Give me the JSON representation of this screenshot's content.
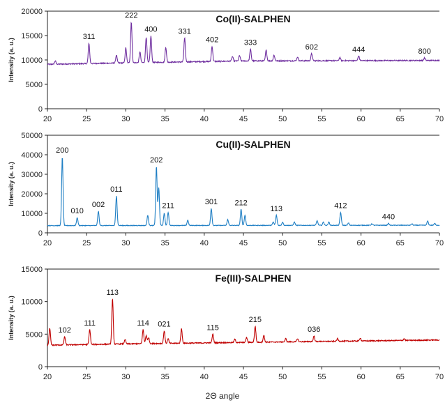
{
  "xlabel": "2Θ angle",
  "chart_data": [
    {
      "type": "line",
      "title": "Co(II)-SALPHEN",
      "ylabel": "Intensity (a. u.)",
      "color": "#7030a0",
      "xlim": [
        20,
        70
      ],
      "ylim": [
        0,
        20000
      ],
      "yticks": [
        0,
        5000,
        10000,
        15000,
        20000
      ],
      "xticks": [
        20,
        25,
        30,
        35,
        40,
        45,
        50,
        55,
        60,
        65,
        70
      ],
      "baseline": [
        [
          20,
          9100
        ],
        [
          30,
          9400
        ],
        [
          45,
          9800
        ],
        [
          70,
          9900
        ]
      ],
      "noise": 220,
      "peaks": [
        [
          21.0,
          9800
        ],
        [
          25.3,
          13400
        ],
        [
          28.8,
          11000
        ],
        [
          30.0,
          12500
        ],
        [
          30.7,
          17800
        ],
        [
          31.8,
          11700
        ],
        [
          32.6,
          14700
        ],
        [
          33.2,
          14900
        ],
        [
          35.1,
          12600
        ],
        [
          37.5,
          14500
        ],
        [
          41.0,
          12800
        ],
        [
          43.6,
          10700
        ],
        [
          44.5,
          10900
        ],
        [
          45.9,
          12200
        ],
        [
          47.9,
          12000
        ],
        [
          48.9,
          11000
        ],
        [
          51.9,
          10600
        ],
        [
          53.7,
          11300
        ],
        [
          57.3,
          10500
        ],
        [
          59.7,
          10800
        ],
        [
          68.1,
          10400
        ]
      ],
      "peak_labels": [
        {
          "x": 25.3,
          "y": 13400,
          "text": "311"
        },
        {
          "x": 30.7,
          "y": 17800,
          "text": "222"
        },
        {
          "x": 33.2,
          "y": 14900,
          "text": "400"
        },
        {
          "x": 37.5,
          "y": 14500,
          "text": "331"
        },
        {
          "x": 41.0,
          "y": 12800,
          "text": "402"
        },
        {
          "x": 45.9,
          "y": 12200,
          "text": "333"
        },
        {
          "x": 53.7,
          "y": 11300,
          "text": "602"
        },
        {
          "x": 59.7,
          "y": 10800,
          "text": "444"
        },
        {
          "x": 68.1,
          "y": 10400,
          "text": "800"
        }
      ]
    },
    {
      "type": "line",
      "title": "Cu(II)-SALPHEN",
      "ylabel": "Intensity (a. u.)",
      "color": "#1f7fc4",
      "xlim": [
        20,
        70
      ],
      "ylim": [
        0,
        50000
      ],
      "yticks": [
        0,
        10000,
        20000,
        30000,
        40000,
        50000
      ],
      "xticks": [
        20,
        25,
        30,
        35,
        40,
        45,
        50,
        55,
        60,
        65,
        70
      ],
      "baseline": [
        [
          20,
          3700
        ],
        [
          70,
          3900
        ]
      ],
      "noise": 300,
      "peaks": [
        [
          21.9,
          39000
        ],
        [
          23.8,
          7800
        ],
        [
          26.5,
          11000
        ],
        [
          28.8,
          19000
        ],
        [
          32.8,
          9000
        ],
        [
          33.9,
          34000
        ],
        [
          34.2,
          23000
        ],
        [
          34.9,
          10000
        ],
        [
          35.4,
          10500
        ],
        [
          37.9,
          6500
        ],
        [
          40.9,
          12500
        ],
        [
          43.0,
          6800
        ],
        [
          44.7,
          12000
        ],
        [
          45.2,
          9000
        ],
        [
          48.8,
          5500
        ],
        [
          49.2,
          9000
        ],
        [
          50.0,
          5500
        ],
        [
          51.5,
          5500
        ],
        [
          54.4,
          6200
        ],
        [
          55.2,
          5500
        ],
        [
          55.9,
          5500
        ],
        [
          57.4,
          10500
        ],
        [
          58.4,
          5000
        ],
        [
          61.4,
          4600
        ],
        [
          63.5,
          4800
        ],
        [
          66.5,
          4600
        ],
        [
          68.5,
          6000
        ],
        [
          69.4,
          4800
        ]
      ],
      "peak_labels": [
        {
          "x": 21.9,
          "y": 39000,
          "text": "200"
        },
        {
          "x": 23.8,
          "y": 7800,
          "text": "010"
        },
        {
          "x": 26.5,
          "y": 11000,
          "text": "002"
        },
        {
          "x": 28.8,
          "y": 19000,
          "text": "011"
        },
        {
          "x": 33.9,
          "y": 34000,
          "text": "202"
        },
        {
          "x": 35.4,
          "y": 10500,
          "text": "211"
        },
        {
          "x": 40.9,
          "y": 12500,
          "text": "301"
        },
        {
          "x": 44.7,
          "y": 12000,
          "text": "212"
        },
        {
          "x": 49.2,
          "y": 9000,
          "text": "113"
        },
        {
          "x": 57.4,
          "y": 10500,
          "text": "412"
        },
        {
          "x": 63.5,
          "y": 4800,
          "text": "440"
        }
      ]
    },
    {
      "type": "line",
      "title": "Fe(III)-SALPHEN",
      "ylabel": "Intensity (a. u.)",
      "color": "#c00000",
      "xlim": [
        20,
        70
      ],
      "ylim": [
        0,
        15000
      ],
      "yticks": [
        0,
        5000,
        10000,
        15000
      ],
      "xticks": [
        20,
        25,
        30,
        35,
        40,
        45,
        50,
        55,
        60,
        65,
        70
      ],
      "baseline": [
        [
          20,
          3300
        ],
        [
          30,
          3500
        ],
        [
          50,
          3800
        ],
        [
          70,
          4100
        ]
      ],
      "noise": 160,
      "peaks": [
        [
          20.3,
          5900
        ],
        [
          22.2,
          4600
        ],
        [
          25.4,
          5700
        ],
        [
          28.3,
          10400
        ],
        [
          29.9,
          4200
        ],
        [
          32.2,
          5700
        ],
        [
          32.6,
          4800
        ],
        [
          32.9,
          4500
        ],
        [
          34.9,
          5500
        ],
        [
          35.4,
          4300
        ],
        [
          37.1,
          5800
        ],
        [
          41.1,
          5000
        ],
        [
          43.9,
          4200
        ],
        [
          45.4,
          4500
        ],
        [
          46.5,
          6200
        ],
        [
          47.6,
          4800
        ],
        [
          50.4,
          4300
        ],
        [
          51.9,
          4300
        ],
        [
          54.0,
          4700
        ],
        [
          57.0,
          4300
        ],
        [
          59.9,
          4400
        ],
        [
          65.5,
          4300
        ]
      ],
      "peak_labels": [
        {
          "x": 22.2,
          "y": 4600,
          "text": "102"
        },
        {
          "x": 25.4,
          "y": 5700,
          "text": "111"
        },
        {
          "x": 28.3,
          "y": 10400,
          "text": "113"
        },
        {
          "x": 32.2,
          "y": 5700,
          "text": "114"
        },
        {
          "x": 34.9,
          "y": 5500,
          "text": "021"
        },
        {
          "x": 41.1,
          "y": 5000,
          "text": "115"
        },
        {
          "x": 46.5,
          "y": 6200,
          "text": "215"
        },
        {
          "x": 54.0,
          "y": 4700,
          "text": "036"
        }
      ]
    }
  ]
}
